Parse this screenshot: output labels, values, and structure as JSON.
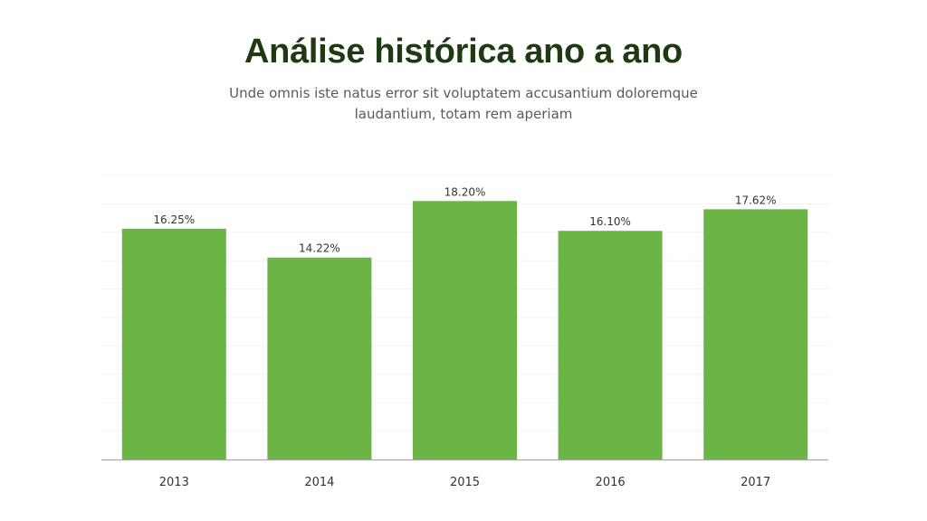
{
  "slide": {
    "title": "Análise histórica ano a ano",
    "subtitle": "Unde omnis iste natus error sit voluptatem accusantium doloremque laudantium, totam rem aperiam"
  },
  "colors": {
    "title": "#1e3a12",
    "bar": "#6ab545",
    "axis": "#a8a8a8",
    "gridline": "#f3f3f3",
    "text": "#333333"
  },
  "chart_data": {
    "type": "bar",
    "title": "",
    "xlabel": "",
    "ylabel": "",
    "categories": [
      "2013",
      "2014",
      "2015",
      "2016",
      "2017"
    ],
    "values": [
      16.25,
      14.22,
      18.2,
      16.1,
      17.62
    ],
    "value_labels": [
      "16.25%",
      "14.22%",
      "18.20%",
      "16.10%",
      "17.62%"
    ],
    "ylim": [
      0,
      20
    ],
    "grid": true,
    "legend": "none"
  }
}
